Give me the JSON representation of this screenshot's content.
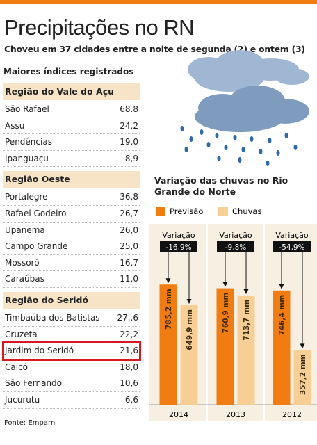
{
  "header": {
    "title": "Precipitações no RN",
    "subtitle": "Choveu em 37 cidades entre a noite de segunda (2) e ontem (3)"
  },
  "table": {
    "title": "Maiores índices registrados",
    "highlight": {
      "region": 2,
      "row": 2
    },
    "regions": [
      {
        "name": "Região do Vale do Açu",
        "rows": [
          [
            "São Rafael",
            "68.8"
          ],
          [
            "Assu",
            "24,2"
          ],
          [
            "Pendências",
            "19,0"
          ],
          [
            "Ipanguaçu",
            "8,9"
          ]
        ]
      },
      {
        "name": "Região Oeste",
        "rows": [
          [
            "Portalegre",
            "36,8"
          ],
          [
            "Rafael Godeiro",
            "26,7"
          ],
          [
            "Upanema",
            "26,0"
          ],
          [
            "Campo Grande",
            "25,0"
          ],
          [
            "Mossoró",
            "16,7"
          ],
          [
            "Caraúbas",
            "11,0"
          ]
        ]
      },
      {
        "name": "Região do Seridó",
        "rows": [
          [
            "Timbaúba dos Batistas",
            "27,.6"
          ],
          [
            "Cruzeta",
            "22,2"
          ],
          [
            "Jardim do Seridó",
            "21,6"
          ],
          [
            "Caicó",
            "18,0"
          ],
          [
            "São Fernando",
            "10,6"
          ],
          [
            "Jucurutu",
            "6,6"
          ]
        ]
      }
    ]
  },
  "source": "Fonte: Emparn",
  "chart_data": {
    "type": "bar",
    "title": "Variação das chuvas no Rio Grande do Norte",
    "categories": [
      "2014",
      "2013",
      "2012"
    ],
    "series": [
      {
        "name": "Previsão",
        "color": "#f07c12",
        "values": [
          785.2,
          760.9,
          746.4
        ],
        "value_labels": [
          "785,2 mm",
          "760,9 mm",
          "746,4 mm"
        ]
      },
      {
        "name": "Chuvas",
        "color": "#f7cf95",
        "values": [
          649.9,
          713.7,
          357.2
        ],
        "value_labels": [
          "649,9 mm",
          "713,7 mm",
          "357,2 mm"
        ]
      }
    ],
    "annotations": [
      {
        "label": "Variação",
        "text": "-16,9%"
      },
      {
        "label": "Variação",
        "text": "-9,8%"
      },
      {
        "label": "Variação",
        "text": "-54,9%"
      }
    ]
  }
}
